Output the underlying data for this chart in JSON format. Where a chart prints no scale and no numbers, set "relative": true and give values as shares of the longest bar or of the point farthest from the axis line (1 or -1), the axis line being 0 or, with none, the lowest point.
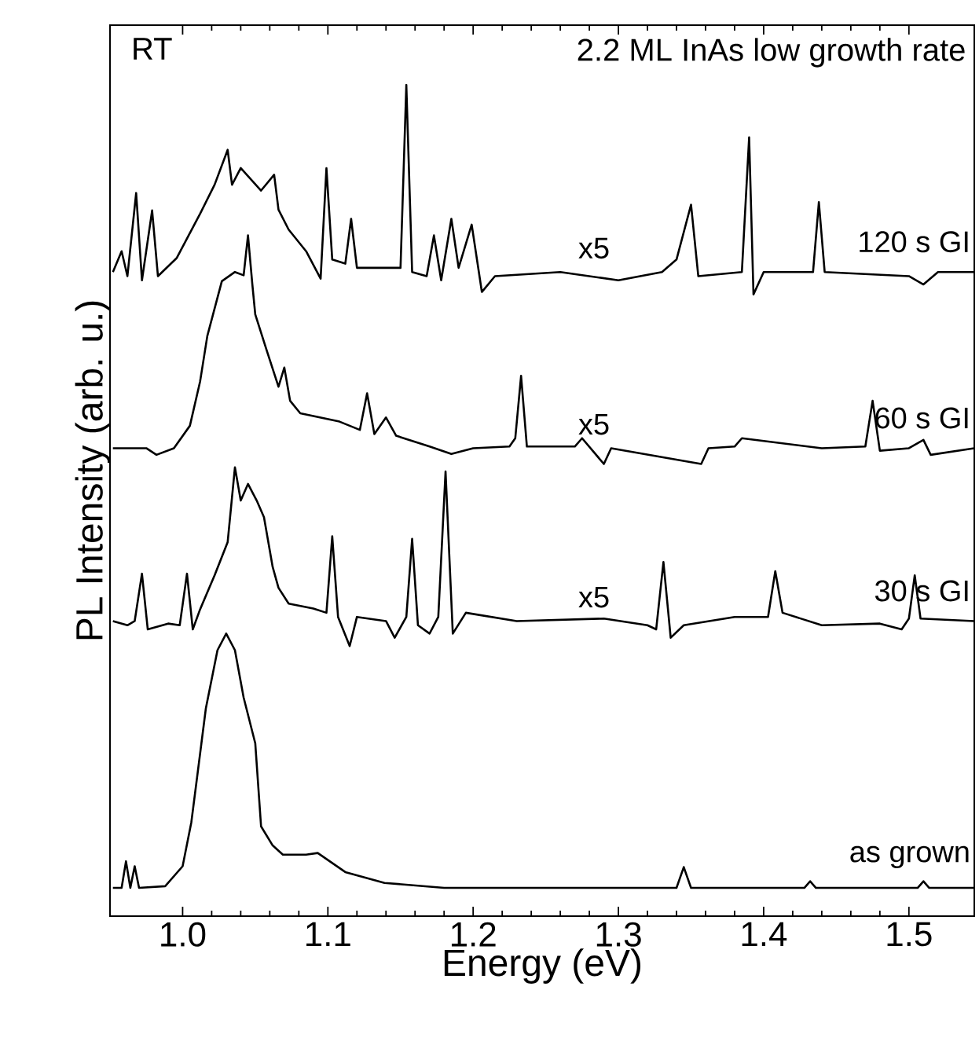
{
  "chart_data": {
    "type": "line",
    "relative": true,
    "xlabel": "Energy (eV)",
    "ylabel": "PL Intensity (arb. u.)",
    "xlim": [
      0.95,
      1.545
    ],
    "xticks": [
      {
        "value": 1.0,
        "label": "1.0"
      },
      {
        "value": 1.1,
        "label": "1.1"
      },
      {
        "value": 1.2,
        "label": "1.2"
      },
      {
        "value": 1.3,
        "label": "1.3"
      },
      {
        "value": 1.4,
        "label": "1.4"
      },
      {
        "value": 1.5,
        "label": "1.5"
      }
    ],
    "marker": "none",
    "line_style": "solid",
    "grid": false,
    "legend": false,
    "annotations": [
      "RT",
      "2.2 ML InAs low growth rate",
      "x5",
      "x5",
      "x5"
    ],
    "series": [
      {
        "name": "as grown",
        "color": "#000000",
        "x": [
          0.952,
          0.958,
          0.961,
          0.964,
          0.967,
          0.97,
          0.988,
          1.0,
          1.006,
          1.016,
          1.024,
          1.03,
          1.036,
          1.042,
          1.05,
          1.054,
          1.062,
          1.069,
          1.085,
          1.093,
          1.112,
          1.139,
          1.18,
          1.34,
          1.345,
          1.35,
          1.428,
          1.432,
          1.436,
          1.506,
          1.51,
          1.514,
          1.545
        ],
        "values": [
          0.034,
          0.034,
          0.066,
          0.034,
          0.06,
          0.034,
          0.036,
          0.06,
          0.113,
          0.25,
          0.32,
          0.34,
          0.32,
          0.263,
          0.208,
          0.108,
          0.085,
          0.074,
          0.074,
          0.076,
          0.053,
          0.04,
          0.034,
          0.034,
          0.059,
          0.034,
          0.034,
          0.042,
          0.034,
          0.034,
          0.042,
          0.034,
          0.034
        ]
      },
      {
        "name": "30 s GI",
        "color": "#000000",
        "x": [
          0.952,
          0.962,
          0.967,
          0.972,
          0.976,
          0.99,
          0.998,
          1.003,
          1.007,
          1.012,
          1.022,
          1.031,
          1.036,
          1.04,
          1.045,
          1.051,
          1.056,
          1.062,
          1.066,
          1.073,
          1.09,
          1.099,
          1.103,
          1.107,
          1.115,
          1.12,
          1.14,
          1.146,
          1.154,
          1.158,
          1.162,
          1.17,
          1.176,
          1.181,
          1.186,
          1.195,
          1.23,
          1.29,
          1.32,
          1.326,
          1.331,
          1.336,
          1.345,
          1.38,
          1.403,
          1.408,
          1.413,
          1.44,
          1.48,
          1.495,
          1.5,
          1.504,
          1.508,
          1.545
        ],
        "values": [
          0.355,
          0.35,
          0.355,
          0.412,
          0.345,
          0.352,
          0.35,
          0.412,
          0.345,
          0.369,
          0.41,
          0.45,
          0.54,
          0.5,
          0.52,
          0.5,
          0.48,
          0.42,
          0.395,
          0.376,
          0.37,
          0.365,
          0.457,
          0.36,
          0.325,
          0.36,
          0.355,
          0.335,
          0.36,
          0.454,
          0.35,
          0.34,
          0.36,
          0.535,
          0.34,
          0.365,
          0.355,
          0.358,
          0.35,
          0.345,
          0.426,
          0.335,
          0.35,
          0.36,
          0.36,
          0.415,
          0.365,
          0.35,
          0.352,
          0.345,
          0.358,
          0.41,
          0.358,
          0.355
        ]
      },
      {
        "name": "60 s GI",
        "color": "#000000",
        "x": [
          0.952,
          0.975,
          0.982,
          0.994,
          1.005,
          1.012,
          1.017,
          1.027,
          1.036,
          1.042,
          1.045,
          1.048,
          1.05,
          1.058,
          1.066,
          1.07,
          1.074,
          1.081,
          1.108,
          1.122,
          1.127,
          1.132,
          1.14,
          1.147,
          1.17,
          1.185,
          1.2,
          1.225,
          1.229,
          1.233,
          1.237,
          1.27,
          1.275,
          1.29,
          1.295,
          1.357,
          1.362,
          1.38,
          1.385,
          1.44,
          1.47,
          1.475,
          1.48,
          1.5,
          1.51,
          1.515,
          1.545
        ],
        "values": [
          0.563,
          0.563,
          0.555,
          0.563,
          0.59,
          0.643,
          0.698,
          0.764,
          0.775,
          0.771,
          0.819,
          0.76,
          0.724,
          0.68,
          0.637,
          0.66,
          0.62,
          0.605,
          0.595,
          0.585,
          0.629,
          0.58,
          0.6,
          0.578,
          0.565,
          0.556,
          0.563,
          0.565,
          0.575,
          0.65,
          0.565,
          0.565,
          0.575,
          0.544,
          0.563,
          0.544,
          0.563,
          0.565,
          0.575,
          0.563,
          0.565,
          0.62,
          0.56,
          0.563,
          0.573,
          0.555,
          0.563
        ]
      },
      {
        "name": "120 s GI",
        "color": "#000000",
        "x": [
          0.952,
          0.958,
          0.962,
          0.968,
          0.972,
          0.979,
          0.983,
          0.996,
          1.012,
          1.022,
          1.031,
          1.034,
          1.04,
          1.054,
          1.063,
          1.066,
          1.073,
          1.085,
          1.095,
          1.099,
          1.103,
          1.112,
          1.116,
          1.12,
          1.15,
          1.154,
          1.158,
          1.168,
          1.173,
          1.178,
          1.185,
          1.19,
          1.199,
          1.206,
          1.215,
          1.26,
          1.3,
          1.33,
          1.34,
          1.35,
          1.355,
          1.385,
          1.39,
          1.393,
          1.4,
          1.434,
          1.438,
          1.442,
          1.5,
          1.51,
          1.52,
          1.545
        ],
        "values": [
          0.775,
          0.8,
          0.77,
          0.87,
          0.765,
          0.849,
          0.77,
          0.792,
          0.845,
          0.88,
          0.922,
          0.88,
          0.9,
          0.873,
          0.892,
          0.85,
          0.826,
          0.8,
          0.767,
          0.9,
          0.79,
          0.785,
          0.839,
          0.78,
          0.78,
          1.0,
          0.775,
          0.77,
          0.819,
          0.765,
          0.839,
          0.78,
          0.832,
          0.751,
          0.77,
          0.775,
          0.765,
          0.775,
          0.79,
          0.856,
          0.77,
          0.775,
          0.937,
          0.748,
          0.775,
          0.775,
          0.859,
          0.775,
          0.77,
          0.76,
          0.775,
          0.775
        ]
      }
    ]
  }
}
